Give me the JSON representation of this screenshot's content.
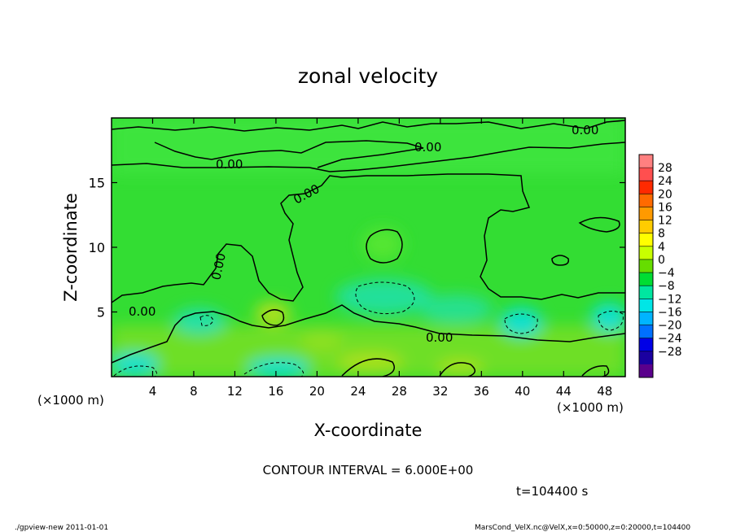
{
  "chart_data": {
    "type": "heatmap",
    "title": "zonal velocity",
    "xlabel": "X-coordinate",
    "ylabel": "Z-coordinate",
    "x_unit_label": "(×1000 m)",
    "y_unit_label": "(×1000 m)",
    "xlim": [
      0,
      50
    ],
    "ylim": [
      0,
      20
    ],
    "x_ticks": [
      4,
      8,
      12,
      16,
      20,
      24,
      28,
      32,
      36,
      40,
      44,
      48
    ],
    "y_ticks": [
      5,
      10,
      15
    ],
    "colorbar": {
      "labels": [
        "28",
        "24",
        "20",
        "16",
        "12",
        "8",
        "4",
        "0",
        "−4",
        "−8",
        "−12",
        "−16",
        "−20",
        "−24",
        "−28"
      ],
      "colors": [
        "#ff8080",
        "#ff4f4f",
        "#ff2a00",
        "#ff6a00",
        "#ff9a00",
        "#ffcc00",
        "#ffff00",
        "#c8ff00",
        "#66dd00",
        "#00dd33",
        "#00e6a0",
        "#00e6e6",
        "#00b4ff",
        "#0070ff",
        "#0000e6",
        "#1a00a0",
        "#5a008c"
      ]
    },
    "contour_label": "0.00",
    "contour_interval_text": "CONTOUR INTERVAL = 6.000E+00",
    "time_text": "t=104400 s"
  },
  "footer": {
    "left": "./gpview-new   2011-01-01",
    "right": "MarsCond_VelX.nc@VelX,x=0:50000,z=0:20000,t=104400"
  }
}
